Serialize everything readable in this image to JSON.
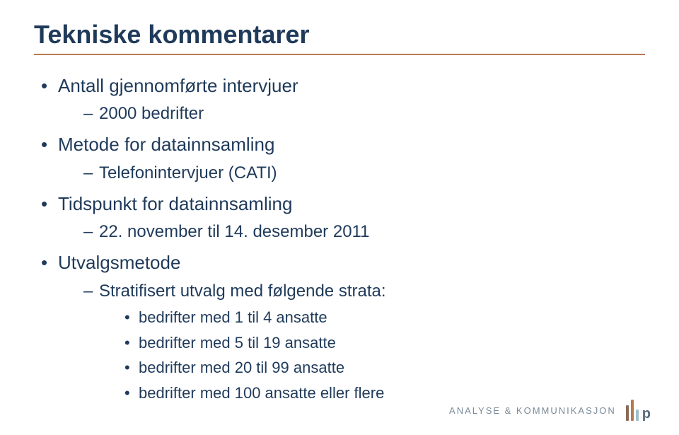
{
  "title": "Tekniske kommentarer",
  "bullets": [
    {
      "text": "Antall gjennomførte intervjuer",
      "children": [
        {
          "text": "2000 bedrifter"
        }
      ]
    },
    {
      "text": "Metode for datainnsamling",
      "children": [
        {
          "text": "Telefonintervjuer (CATI)"
        }
      ]
    },
    {
      "text": "Tidspunkt for datainnsamling",
      "children": [
        {
          "text": "22. november til 14. desember 2011"
        }
      ]
    },
    {
      "text": "Utvalgsmetode",
      "children": [
        {
          "text": "Stratifisert utvalg med følgende strata:",
          "children": [
            {
              "text": "bedrifter med 1 til 4 ansatte"
            },
            {
              "text": "bedrifter med 5 til 19 ansatte"
            },
            {
              "text": "bedrifter med 20 til 99 ansatte"
            },
            {
              "text": "bedrifter med 100 ansatte eller flere"
            }
          ]
        }
      ]
    }
  ],
  "footer": {
    "text": "ANALYSE & KOMMUNIKASJON"
  },
  "colors": {
    "title": "#1f3a5a",
    "body": "#1f3a5a",
    "rule": "#b8794e",
    "footer_text": "#7a8a99",
    "background": "#ffffff"
  },
  "typography": {
    "title_fontsize": 36,
    "level1_fontsize": 26,
    "level2_fontsize": 24,
    "level3_fontsize": 22,
    "footer_fontsize": 13
  }
}
